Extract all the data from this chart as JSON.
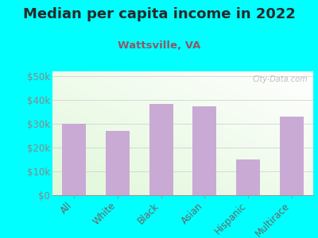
{
  "title": "Median per capita income in 2022",
  "subtitle": "Wattsville, VA",
  "categories": [
    "All",
    "White",
    "Black",
    "Asian",
    "Hispanic",
    "Multirace"
  ],
  "values": [
    30000,
    27000,
    38500,
    37500,
    15000,
    33000
  ],
  "bar_color": "#c9aad5",
  "background_outer": "#00FFFF",
  "title_color": "#2a2a2a",
  "subtitle_color": "#8B5A6A",
  "ytick_labels": [
    "$50k",
    "$40k",
    "$30k",
    "$20k",
    "$10k",
    "$0"
  ],
  "ytick_values": [
    50000,
    40000,
    30000,
    20000,
    10000,
    0
  ],
  "ylim": [
    0,
    52000
  ],
  "watermark": "City-Data.com",
  "title_fontsize": 13,
  "subtitle_fontsize": 9.5,
  "tick_fontsize": 8.5,
  "xtick_color": "#666666",
  "ytick_color": "#888888"
}
